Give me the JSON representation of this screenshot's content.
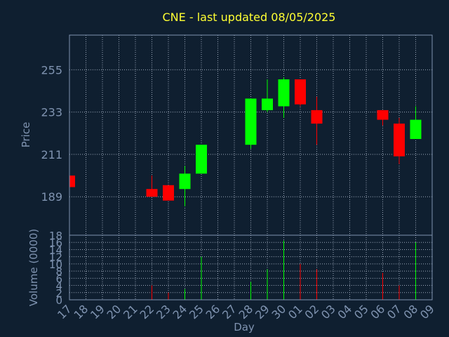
{
  "chart_data": {
    "type": "candlestick",
    "title": "CNE - last updated 08/05/2025",
    "xlabel": "Day",
    "price_panel": {
      "ylabel": "Price",
      "ylim": [
        169,
        273
      ],
      "yticks": [
        189,
        211,
        233,
        255
      ]
    },
    "volume_panel": {
      "ylabel": "Volume (0000)",
      "ylim": [
        0,
        18
      ],
      "yticks": [
        0,
        2,
        4,
        6,
        8,
        10,
        12,
        14,
        16,
        18
      ]
    },
    "grid": true,
    "x_ticks": [
      "17",
      "18",
      "19",
      "20",
      "21",
      "22",
      "23",
      "24",
      "25",
      "26",
      "27",
      "28",
      "29",
      "30",
      "01",
      "02",
      "03",
      "04",
      "05",
      "06",
      "07",
      "08",
      "09"
    ],
    "candles": [
      {
        "day": "17",
        "open": 200,
        "close": 194,
        "high": 200,
        "low": 194,
        "volume": 0
      },
      {
        "day": "22",
        "open": 193,
        "close": 189,
        "high": 200,
        "low": 189,
        "volume": 4
      },
      {
        "day": "23",
        "open": 195,
        "close": 187,
        "high": 195,
        "low": 187,
        "volume": 2
      },
      {
        "day": "24",
        "open": 193,
        "close": 201,
        "high": 205,
        "low": 184,
        "volume": 3
      },
      {
        "day": "25",
        "open": 201,
        "close": 216,
        "high": 216,
        "low": 201,
        "volume": 12
      },
      {
        "day": "28",
        "open": 216,
        "close": 240,
        "high": 240,
        "low": 214,
        "volume": 5
      },
      {
        "day": "29",
        "open": 234,
        "close": 240,
        "high": 250,
        "low": 233,
        "volume": 8.5
      },
      {
        "day": "30",
        "open": 236,
        "close": 250,
        "high": 251,
        "low": 230,
        "volume": 16.5
      },
      {
        "day": "01",
        "open": 250,
        "close": 237,
        "high": 250,
        "low": 236,
        "volume": 10
      },
      {
        "day": "02",
        "open": 234,
        "close": 227,
        "high": 241,
        "low": 216,
        "volume": 8.5
      },
      {
        "day": "06",
        "open": 234,
        "close": 229,
        "high": 234,
        "low": 226,
        "volume": 7.5
      },
      {
        "day": "07",
        "open": 227,
        "close": 210,
        "high": 230,
        "low": 206,
        "volume": 4
      },
      {
        "day": "08",
        "open": 219,
        "close": 229,
        "high": 236,
        "low": 219,
        "volume": 16
      }
    ],
    "colors": {
      "background": "#0f1f30",
      "up": "#00ff00",
      "down": "#ff0000",
      "title": "#ffff33",
      "axis_text": "#7f93b0",
      "frame": "#7f93b0",
      "grid": "#9aa6b8"
    }
  }
}
